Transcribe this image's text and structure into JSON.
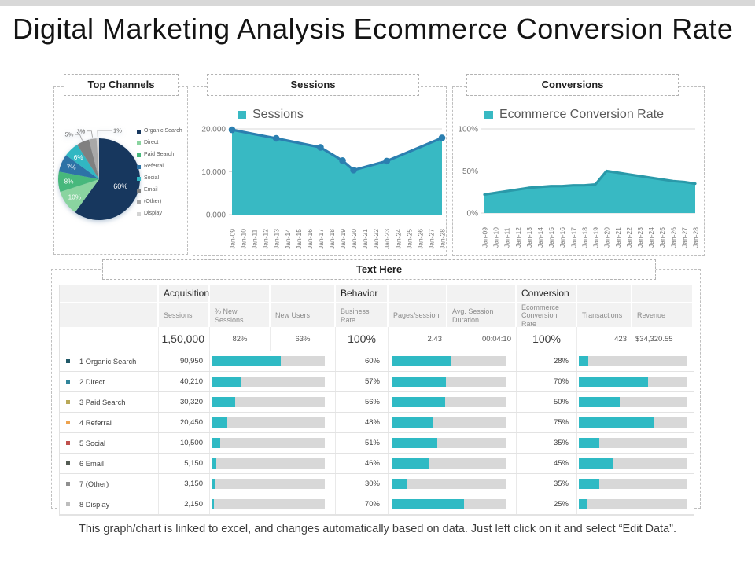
{
  "page": {
    "title": "Digital Marketing Analysis Ecommerce Conversion Rate",
    "footer": "This graph/chart is linked to excel, and changes automatically based on data. Just left click on it and select “Edit Data”."
  },
  "panels": {
    "top_channels_title": "Top Channels",
    "sessions_title": "Sessions",
    "conversions_title": "Conversions",
    "table_title": "Text Here"
  },
  "chart_data": [
    {
      "type": "pie",
      "name": "top-channels-pie",
      "labels": [
        "Organic Search",
        "Direct",
        "Paid Search",
        "Referral",
        "Social",
        "Email",
        "(Other)",
        "Display"
      ],
      "values": [
        60,
        10,
        8,
        7,
        6,
        5,
        3,
        1
      ],
      "value_labels": [
        "60%",
        "10%",
        "8%",
        "7%",
        "6%",
        "5%",
        "3%",
        "1%"
      ],
      "colors": [
        "#17375e",
        "#8ad4a0",
        "#47b87c",
        "#2d72a6",
        "#31b7c2",
        "#808080",
        "#a8a8a8",
        "#d4d4d4"
      ],
      "legend_position": "right",
      "start_angle": "12 o'clock, clockwise"
    },
    {
      "type": "area",
      "name": "sessions-area",
      "legend": "Sessions",
      "x": [
        "Jan-09",
        "Jan-10",
        "Jan-11",
        "Jan-12",
        "Jan-13",
        "Jan-14",
        "Jan-15",
        "Jan-16",
        "Jan-17",
        "Jan-18",
        "Jan-19",
        "Jan-20",
        "Jan-21",
        "Jan-22",
        "Jan-23",
        "Jan-24",
        "Jan-25",
        "Jan-26",
        "Jan-27",
        "Jan-28"
      ],
      "values": [
        19800,
        19300,
        18800,
        18300,
        17800,
        17270,
        16750,
        16220,
        15700,
        14150,
        12600,
        10400,
        11100,
        11800,
        12500,
        13580,
        14660,
        15740,
        16820,
        17900
      ],
      "markers": [
        0,
        4,
        8,
        10,
        11,
        14,
        19
      ],
      "ylim": [
        0,
        20000
      ],
      "yticks": [
        "0.000",
        "10.000",
        "20.000"
      ],
      "fill": "#38b9c3",
      "line": "#2b7fb0",
      "grid": true,
      "legend_position": "top"
    },
    {
      "type": "area",
      "name": "conversions-area",
      "legend": "Ecommerce Conversion Rate",
      "x": [
        "Jan-09",
        "Jan-10",
        "Jan-11",
        "Jan-12",
        "Jan-13",
        "Jan-14",
        "Jan-15",
        "Jan-16",
        "Jan-17",
        "Jan-18",
        "Jan-19",
        "Jan-20",
        "Jan-21",
        "Jan-22",
        "Jan-23",
        "Jan-24",
        "Jan-25",
        "Jan-26",
        "Jan-27",
        "Jan-28"
      ],
      "values": [
        22,
        24,
        26,
        28,
        30,
        31,
        32,
        32,
        33,
        33,
        34,
        50,
        48,
        46,
        44,
        42,
        40,
        38,
        37,
        35
      ],
      "markers": [],
      "ylim": [
        0,
        100
      ],
      "yticks": [
        "0%",
        "50%",
        "100%"
      ],
      "fill": "#38b9c3",
      "line": "#2a99a9",
      "grid": true,
      "legend_position": "top"
    },
    {
      "type": "table",
      "name": "channels-table",
      "group_headers": [
        {
          "label": "Acquisition",
          "col": 1
        },
        {
          "label": "Behavior",
          "col": 4
        },
        {
          "label": "Conversion",
          "col": 7
        }
      ],
      "columns": [
        "",
        "Sessions",
        "% New Sessions",
        "New Users",
        "Business Rate",
        "Pages/session",
        "Avg. Session Duration",
        "Ecommerce Conversion Rate",
        "Transactions",
        "Revenue"
      ],
      "summary": [
        "1,50,000",
        "82%",
        "63%",
        "100%",
        "2.43",
        "00:04:10",
        "100%",
        "423",
        "$34,320.55"
      ],
      "bar_color": "#2fbac4",
      "bar_track_color": "#d8d8d8",
      "rows": [
        {
          "bullet": "#215968",
          "name": "1 Organic Search",
          "sessions": "90,950",
          "sessions_bar": 61,
          "rate": "60%",
          "rate_bar": 51,
          "conversion": "28%",
          "conversion_bar": 9
        },
        {
          "bullet": "#31859b",
          "name": "2 Direct",
          "sessions": "40,210",
          "sessions_bar": 26,
          "rate": "57%",
          "rate_bar": 47,
          "conversion": "70%",
          "conversion_bar": 64
        },
        {
          "bullet": "#b9a858",
          "name": "3 Paid Search",
          "sessions": "30,320",
          "sessions_bar": 20,
          "rate": "56%",
          "rate_bar": 46,
          "conversion": "50%",
          "conversion_bar": 38
        },
        {
          "bullet": "#eda34f",
          "name": "4 Referral",
          "sessions": "20,450",
          "sessions_bar": 13,
          "rate": "48%",
          "rate_bar": 35,
          "conversion": "75%",
          "conversion_bar": 69
        },
        {
          "bullet": "#c0504d",
          "name": "5 Social",
          "sessions": "10,500",
          "sessions_bar": 7,
          "rate": "51%",
          "rate_bar": 39,
          "conversion": "35%",
          "conversion_bar": 19
        },
        {
          "bullet": "#545c54",
          "name": "6 Email",
          "sessions": "5,150",
          "sessions_bar": 3.5,
          "rate": "46%",
          "rate_bar": 32,
          "conversion": "45%",
          "conversion_bar": 32
        },
        {
          "bullet": "#8f8f8f",
          "name": "7 (Other)",
          "sessions": "3,150",
          "sessions_bar": 2,
          "rate": "30%",
          "rate_bar": 13,
          "conversion": "35%",
          "conversion_bar": 19
        },
        {
          "bullet": "#bdbdbd",
          "name": "8 Display",
          "sessions": "2,150",
          "sessions_bar": 1.3,
          "rate": "70%",
          "rate_bar": 63,
          "conversion": "25%",
          "conversion_bar": 7
        }
      ]
    }
  ]
}
